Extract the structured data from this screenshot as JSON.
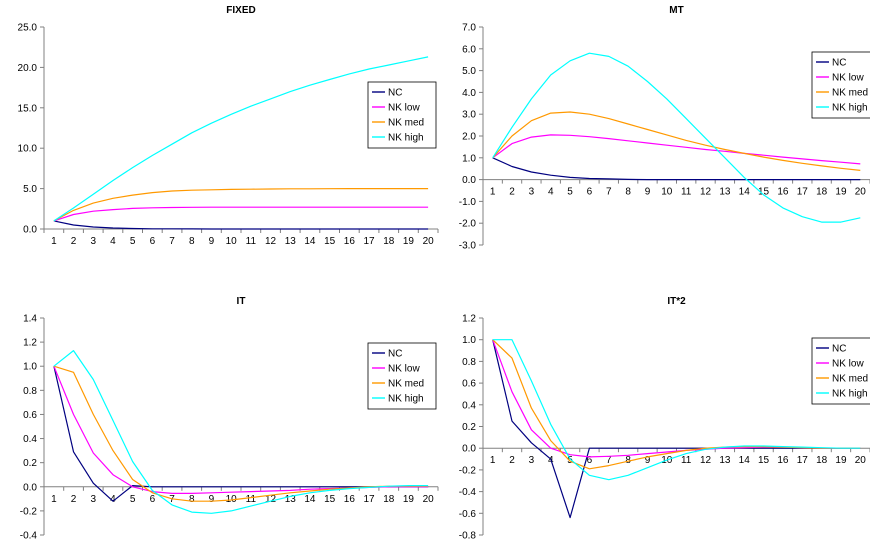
{
  "colors": {
    "NC": "#000080",
    "NK low": "#FF00FF",
    "NK med": "#FF9900",
    "NK high": "#00FFFF"
  },
  "chart_data": [
    {
      "type": "line",
      "title": "FIXED",
      "x": [
        1,
        2,
        3,
        4,
        5,
        6,
        7,
        8,
        9,
        10,
        11,
        12,
        13,
        14,
        15,
        16,
        17,
        18,
        19,
        20
      ],
      "ylim": [
        0,
        25
      ],
      "yticks": [
        "0.0",
        "5.0",
        "10.0",
        "15.0",
        "20.0",
        "25.0"
      ],
      "legend_position": "right",
      "series": [
        {
          "name": "NC",
          "values": [
            1.0,
            0.5,
            0.25,
            0.12,
            0.06,
            0.03,
            0.02,
            0.01,
            0,
            0,
            0,
            0,
            0,
            0,
            0,
            0,
            0,
            0,
            0,
            0
          ]
        },
        {
          "name": "NK low",
          "values": [
            1.0,
            1.8,
            2.2,
            2.4,
            2.55,
            2.62,
            2.66,
            2.68,
            2.7,
            2.7,
            2.7,
            2.7,
            2.7,
            2.7,
            2.7,
            2.7,
            2.7,
            2.7,
            2.7,
            2.7
          ]
        },
        {
          "name": "NK med",
          "values": [
            1.0,
            2.3,
            3.2,
            3.8,
            4.2,
            4.5,
            4.7,
            4.8,
            4.85,
            4.9,
            4.92,
            4.95,
            4.97,
            4.98,
            4.99,
            5.0,
            5.0,
            5.0,
            5.0,
            5.0
          ]
        },
        {
          "name": "NK high",
          "values": [
            1.0,
            2.6,
            4.3,
            6.0,
            7.6,
            9.1,
            10.5,
            11.9,
            13.1,
            14.2,
            15.2,
            16.1,
            17.0,
            17.8,
            18.5,
            19.2,
            19.8,
            20.3,
            20.8,
            21.3
          ]
        }
      ]
    },
    {
      "type": "line",
      "title": "MT",
      "x": [
        1,
        2,
        3,
        4,
        5,
        6,
        7,
        8,
        9,
        10,
        11,
        12,
        13,
        14,
        15,
        16,
        17,
        18,
        19,
        20
      ],
      "ylim": [
        -3,
        7
      ],
      "yticks": [
        "-3.0",
        "-2.0",
        "-1.0",
        "0.0",
        "1.0",
        "2.0",
        "3.0",
        "4.0",
        "5.0",
        "6.0",
        "7.0"
      ],
      "legend_position": "right",
      "series": [
        {
          "name": "NC",
          "values": [
            1.0,
            0.6,
            0.35,
            0.2,
            0.1,
            0.05,
            0.03,
            0.01,
            0,
            0,
            0,
            0,
            0,
            0,
            0,
            0,
            0,
            0,
            0,
            0
          ]
        },
        {
          "name": "NK low",
          "values": [
            1.0,
            1.65,
            1.95,
            2.05,
            2.03,
            1.97,
            1.88,
            1.78,
            1.68,
            1.58,
            1.48,
            1.38,
            1.3,
            1.2,
            1.12,
            1.03,
            0.95,
            0.87,
            0.8,
            0.72
          ]
        },
        {
          "name": "NK med",
          "values": [
            1.0,
            2.0,
            2.7,
            3.05,
            3.1,
            3.0,
            2.8,
            2.55,
            2.3,
            2.05,
            1.8,
            1.58,
            1.38,
            1.2,
            1.03,
            0.88,
            0.75,
            0.63,
            0.52,
            0.42
          ]
        },
        {
          "name": "NK high",
          "values": [
            1.0,
            2.4,
            3.7,
            4.8,
            5.45,
            5.8,
            5.65,
            5.2,
            4.5,
            3.7,
            2.8,
            1.9,
            1.0,
            0.1,
            -0.7,
            -1.3,
            -1.7,
            -1.95,
            -1.95,
            -1.75
          ]
        }
      ]
    },
    {
      "type": "line",
      "title": "IT",
      "x": [
        1,
        2,
        3,
        4,
        5,
        6,
        7,
        8,
        9,
        10,
        11,
        12,
        13,
        14,
        15,
        16,
        17,
        18,
        19,
        20
      ],
      "ylim": [
        -0.4,
        1.4
      ],
      "yticks": [
        "-0.4",
        "-0.2",
        "0.0",
        "0.2",
        "0.4",
        "0.6",
        "0.8",
        "1.0",
        "1.2",
        "1.4"
      ],
      "legend_position": "right",
      "series": [
        {
          "name": "NC",
          "values": [
            1.0,
            0.29,
            0.03,
            -0.12,
            0.01,
            0,
            0,
            0,
            0,
            0,
            0,
            0,
            0,
            0,
            0,
            0,
            0,
            0,
            0,
            0
          ]
        },
        {
          "name": "NK low",
          "values": [
            1.0,
            0.6,
            0.28,
            0.1,
            0.0,
            -0.04,
            -0.055,
            -0.055,
            -0.05,
            -0.045,
            -0.04,
            -0.035,
            -0.03,
            -0.02,
            -0.015,
            -0.01,
            -0.005,
            0,
            0,
            0
          ]
        },
        {
          "name": "NK med",
          "values": [
            1.0,
            0.95,
            0.6,
            0.3,
            0.06,
            -0.05,
            -0.1,
            -0.12,
            -0.12,
            -0.11,
            -0.09,
            -0.07,
            -0.05,
            -0.035,
            -0.02,
            -0.01,
            0,
            0.005,
            0.005,
            0.005
          ]
        },
        {
          "name": "NK high",
          "values": [
            1.0,
            1.13,
            0.89,
            0.55,
            0.21,
            -0.03,
            -0.15,
            -0.21,
            -0.22,
            -0.2,
            -0.16,
            -0.12,
            -0.08,
            -0.05,
            -0.03,
            -0.015,
            -0.005,
            0.005,
            0.01,
            0.01
          ]
        }
      ]
    },
    {
      "type": "line",
      "title": "IT*2",
      "x": [
        1,
        2,
        3,
        4,
        5,
        6,
        7,
        8,
        9,
        10,
        11,
        12,
        13,
        14,
        15,
        16,
        17,
        18,
        19,
        20
      ],
      "ylim": [
        -0.8,
        1.2
      ],
      "yticks": [
        "-0.8",
        "-0.6",
        "-0.4",
        "-0.2",
        "0.0",
        "0.2",
        "0.4",
        "0.6",
        "0.8",
        "1.0",
        "1.2"
      ],
      "legend_position": "right",
      "series": [
        {
          "name": "NC",
          "values": [
            1.0,
            0.25,
            0.05,
            -0.1,
            -0.64,
            0.0,
            0,
            0,
            0,
            0,
            0,
            0,
            0,
            0,
            0,
            0,
            0,
            0,
            0,
            0
          ]
        },
        {
          "name": "NK low",
          "values": [
            1.0,
            0.52,
            0.17,
            0.0,
            -0.06,
            -0.08,
            -0.075,
            -0.065,
            -0.05,
            -0.035,
            -0.02,
            -0.01,
            0,
            0.005,
            0.01,
            0.01,
            0.005,
            0,
            0,
            0
          ]
        },
        {
          "name": "NK med",
          "values": [
            1.0,
            0.83,
            0.37,
            0.07,
            -0.12,
            -0.19,
            -0.16,
            -0.12,
            -0.08,
            -0.05,
            -0.02,
            0,
            0.01,
            0.015,
            0.015,
            0.01,
            0.005,
            0,
            0,
            0
          ]
        },
        {
          "name": "NK high",
          "values": [
            1.0,
            1.0,
            0.62,
            0.22,
            -0.1,
            -0.25,
            -0.29,
            -0.25,
            -0.18,
            -0.11,
            -0.05,
            -0.01,
            0.01,
            0.02,
            0.02,
            0.015,
            0.01,
            0.005,
            0,
            0
          ]
        }
      ]
    }
  ]
}
